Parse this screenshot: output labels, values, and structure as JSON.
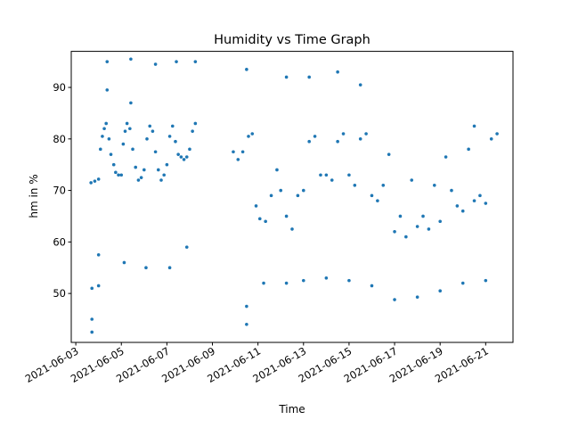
{
  "chart_data": {
    "type": "scatter",
    "title": "Humidity vs Time Graph",
    "xlabel": "Time",
    "ylabel": "hm in %",
    "xlim": [
      "2021-06-02T19:12",
      "2021-06-22T04:48"
    ],
    "ylim": [
      40.5,
      97
    ],
    "x_ticks": [
      "2021-06-03",
      "2021-06-05",
      "2021-06-07",
      "2021-06-09",
      "2021-06-11",
      "2021-06-13",
      "2021-06-15",
      "2021-06-17",
      "2021-06-19",
      "2021-06-21"
    ],
    "y_ticks": [
      50,
      60,
      70,
      80,
      90
    ],
    "grid": false,
    "legend": "none",
    "marker_color": "#1f77b4",
    "series": [
      {
        "points": [
          [
            "2021-06-03T16:00",
            71.5
          ],
          [
            "2021-06-03T20:00",
            71.8
          ],
          [
            "2021-06-04T00:00",
            72.2
          ],
          [
            "2021-06-04T02:00",
            78.0
          ],
          [
            "2021-06-04T04:00",
            80.5
          ],
          [
            "2021-06-04T06:00",
            82.0
          ],
          [
            "2021-06-04T08:00",
            83.0
          ],
          [
            "2021-06-04T11:00",
            80.0
          ],
          [
            "2021-06-04T13:00",
            77.0
          ],
          [
            "2021-06-04T16:00",
            75.0
          ],
          [
            "2021-06-04T18:00",
            73.5
          ],
          [
            "2021-06-04T21:00",
            73.0
          ],
          [
            "2021-06-05T00:00",
            73.0
          ],
          [
            "2021-06-05T02:00",
            79.0
          ],
          [
            "2021-06-05T04:00",
            81.5
          ],
          [
            "2021-06-05T06:00",
            83.0
          ],
          [
            "2021-06-05T09:00",
            82.0
          ],
          [
            "2021-06-05T12:00",
            78.0
          ],
          [
            "2021-06-05T15:00",
            74.5
          ],
          [
            "2021-06-05T18:00",
            72.0
          ],
          [
            "2021-06-05T21:00",
            72.5
          ],
          [
            "2021-06-06T00:00",
            74.0
          ],
          [
            "2021-06-06T03:00",
            80.0
          ],
          [
            "2021-06-06T06:00",
            82.5
          ],
          [
            "2021-06-06T09:00",
            81.5
          ],
          [
            "2021-06-06T12:00",
            77.5
          ],
          [
            "2021-06-06T15:00",
            74.0
          ],
          [
            "2021-06-06T18:00",
            72.0
          ],
          [
            "2021-06-06T21:00",
            73.0
          ],
          [
            "2021-06-07T00:00",
            75.0
          ],
          [
            "2021-06-07T03:00",
            80.5
          ],
          [
            "2021-06-07T06:00",
            82.5
          ],
          [
            "2021-06-07T09:00",
            79.5
          ],
          [
            "2021-06-07T12:00",
            77.0
          ],
          [
            "2021-06-07T15:00",
            76.5
          ],
          [
            "2021-06-07T18:00",
            76.0
          ],
          [
            "2021-06-07T21:00",
            76.5
          ],
          [
            "2021-06-08T00:00",
            78.0
          ],
          [
            "2021-06-08T03:00",
            81.5
          ],
          [
            "2021-06-08T06:00",
            83.0
          ],
          [
            "2021-06-03T17:00",
            51.0
          ],
          [
            "2021-06-03T17:00",
            45.0
          ],
          [
            "2021-06-03T17:00",
            42.5
          ],
          [
            "2021-06-04T09:00",
            95.0
          ],
          [
            "2021-06-04T09:00",
            89.5
          ],
          [
            "2021-06-05T10:00",
            95.5
          ],
          [
            "2021-06-05T10:00",
            87.0
          ],
          [
            "2021-06-06T12:00",
            94.5
          ],
          [
            "2021-06-07T10:00",
            95.0
          ],
          [
            "2021-06-08T06:00",
            95.0
          ],
          [
            "2021-06-04T00:00",
            57.5
          ],
          [
            "2021-06-04T00:00",
            51.5
          ],
          [
            "2021-06-05T03:00",
            56.0
          ],
          [
            "2021-06-06T02:00",
            55.0
          ],
          [
            "2021-06-07T03:00",
            55.0
          ],
          [
            "2021-06-07T21:00",
            59.0
          ],
          [
            "2021-06-09T22:00",
            77.5
          ],
          [
            "2021-06-10T03:00",
            76.0
          ],
          [
            "2021-06-10T08:00",
            77.5
          ],
          [
            "2021-06-10T14:00",
            80.5
          ],
          [
            "2021-06-10T18:00",
            81.0
          ],
          [
            "2021-06-10T22:00",
            67.0
          ],
          [
            "2021-06-11T02:00",
            64.5
          ],
          [
            "2021-06-11T08:00",
            64.0
          ],
          [
            "2021-06-11T14:00",
            69.0
          ],
          [
            "2021-06-11T20:00",
            74.0
          ],
          [
            "2021-06-12T00:00",
            70.0
          ],
          [
            "2021-06-12T06:00",
            65.0
          ],
          [
            "2021-06-12T12:00",
            62.5
          ],
          [
            "2021-06-12T18:00",
            69.0
          ],
          [
            "2021-06-13T00:00",
            70.0
          ],
          [
            "2021-06-13T06:00",
            79.5
          ],
          [
            "2021-06-13T12:00",
            80.5
          ],
          [
            "2021-06-13T18:00",
            73.0
          ],
          [
            "2021-06-14T00:00",
            73.0
          ],
          [
            "2021-06-14T06:00",
            72.0
          ],
          [
            "2021-06-14T12:00",
            79.5
          ],
          [
            "2021-06-14T18:00",
            81.0
          ],
          [
            "2021-06-15T00:00",
            73.0
          ],
          [
            "2021-06-15T06:00",
            71.0
          ],
          [
            "2021-06-15T12:00",
            80.0
          ],
          [
            "2021-06-15T18:00",
            81.0
          ],
          [
            "2021-06-16T00:00",
            69.0
          ],
          [
            "2021-06-16T06:00",
            68.0
          ],
          [
            "2021-06-16T12:00",
            71.0
          ],
          [
            "2021-06-16T18:00",
            77.0
          ],
          [
            "2021-06-17T00:00",
            62.0
          ],
          [
            "2021-06-17T06:00",
            65.0
          ],
          [
            "2021-06-17T12:00",
            61.0
          ],
          [
            "2021-06-17T18:00",
            72.0
          ],
          [
            "2021-06-18T00:00",
            63.0
          ],
          [
            "2021-06-18T06:00",
            65.0
          ],
          [
            "2021-06-18T12:00",
            62.5
          ],
          [
            "2021-06-18T18:00",
            71.0
          ],
          [
            "2021-06-19T00:00",
            64.0
          ],
          [
            "2021-06-19T06:00",
            76.5
          ],
          [
            "2021-06-19T12:00",
            70.0
          ],
          [
            "2021-06-19T18:00",
            67.0
          ],
          [
            "2021-06-20T00:00",
            66.0
          ],
          [
            "2021-06-20T06:00",
            78.0
          ],
          [
            "2021-06-20T12:00",
            68.0
          ],
          [
            "2021-06-20T18:00",
            69.0
          ],
          [
            "2021-06-21T00:00",
            67.5
          ],
          [
            "2021-06-21T06:00",
            80.0
          ],
          [
            "2021-06-21T12:00",
            81.0
          ],
          [
            "2021-06-10T12:00",
            93.5
          ],
          [
            "2021-06-12T06:00",
            92.0
          ],
          [
            "2021-06-13T06:00",
            92.0
          ],
          [
            "2021-06-14T12:00",
            93.0
          ],
          [
            "2021-06-15T12:00",
            90.5
          ],
          [
            "2021-06-20T12:00",
            82.5
          ],
          [
            "2021-06-10T12:00",
            44.0
          ],
          [
            "2021-06-10T12:00",
            47.5
          ],
          [
            "2021-06-11T06:00",
            52.0
          ],
          [
            "2021-06-12T06:00",
            52.0
          ],
          [
            "2021-06-13T00:00",
            52.5
          ],
          [
            "2021-06-14T00:00",
            53.0
          ],
          [
            "2021-06-15T00:00",
            52.5
          ],
          [
            "2021-06-16T00:00",
            51.5
          ],
          [
            "2021-06-17T00:00",
            48.8
          ],
          [
            "2021-06-18T00:00",
            49.3
          ],
          [
            "2021-06-19T00:00",
            50.5
          ],
          [
            "2021-06-20T00:00",
            52.0
          ],
          [
            "2021-06-21T00:00",
            52.5
          ]
        ]
      }
    ]
  }
}
